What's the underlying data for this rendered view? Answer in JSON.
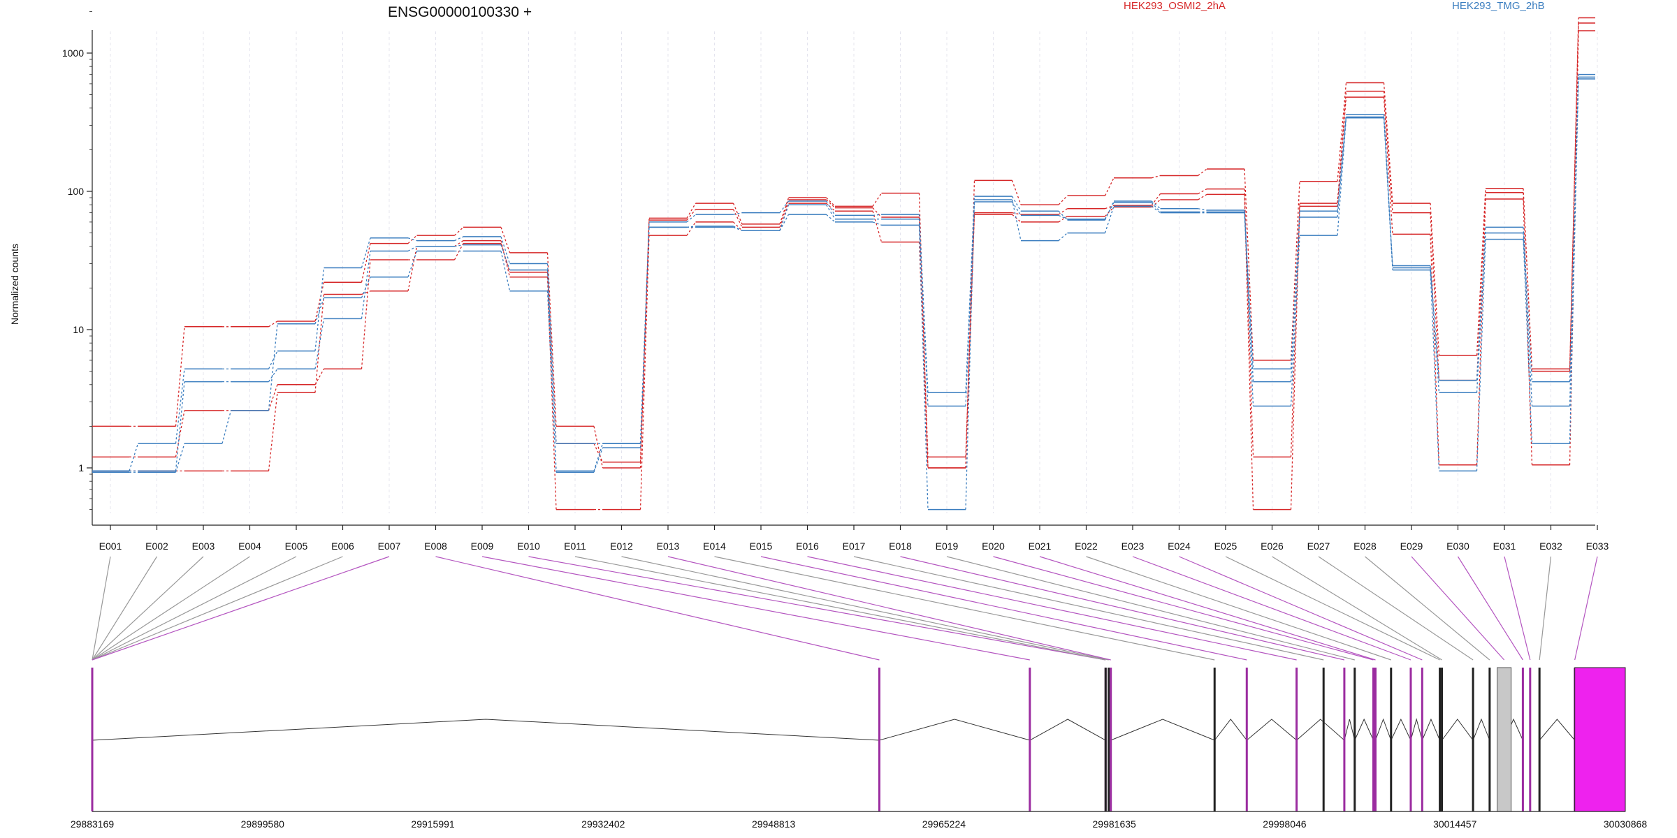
{
  "chart_data": {
    "type": "line",
    "title": "ENSG00000100330 +",
    "ylabel": "Normalized counts",
    "xlabel": "",
    "yscale": "log",
    "ylim": [
      0.5,
      2500
    ],
    "yticks": [
      "1",
      "10",
      "100",
      "1000"
    ],
    "categories": [
      "E001",
      "E002",
      "E003",
      "E004",
      "E005",
      "E006",
      "E007",
      "E008",
      "E009",
      "E010",
      "E011",
      "E012",
      "E013",
      "E014",
      "E015",
      "E016",
      "E017",
      "E018",
      "E019",
      "E020",
      "E021",
      "E022",
      "E023",
      "E024",
      "E025",
      "E026",
      "E027",
      "E028",
      "E029",
      "E030",
      "E031",
      "E032",
      "E033"
    ],
    "grid": true,
    "legend_position": "top",
    "groups": [
      {
        "name": "HEK293_OSMI2_2hA",
        "color": "#d62728"
      },
      {
        "name": "HEK293_TMG_2hB",
        "color": "#3a7dbf"
      }
    ],
    "series": [
      {
        "group": "HEK293_OSMI2_2hA",
        "values": [
          2.0,
          2.0,
          10.5,
          10.5,
          11.5,
          22,
          42,
          48,
          55,
          36,
          2.0,
          1.0,
          64,
          82,
          58,
          90,
          78,
          97,
          1.0,
          120,
          80,
          93,
          125,
          130,
          145,
          6.0,
          118,
          610,
          82,
          6.5,
          105,
          5.0,
          1800
        ]
      },
      {
        "group": "HEK293_OSMI2_2hA",
        "values": [
          1.2,
          1.2,
          2.6,
          2.6,
          4.0,
          5.2,
          32,
          32,
          42,
          26,
          1.5,
          1.1,
          62,
          74,
          55,
          87,
          76,
          65,
          1.2,
          70,
          68,
          75,
          79,
          96,
          104,
          1.2,
          82,
          530,
          70,
          4.3,
          98,
          5.2,
          1650
        ]
      },
      {
        "group": "HEK293_OSMI2_2hA",
        "values": [
          0.95,
          0.95,
          0.95,
          0.95,
          3.5,
          18,
          19,
          40,
          44,
          24,
          0.5,
          0.5,
          48,
          60,
          52,
          82,
          72,
          43,
          1.0,
          68,
          60,
          66,
          77,
          87,
          95,
          0.5,
          78,
          480,
          49,
          1.05,
          88,
          1.05,
          1450
        ]
      },
      {
        "group": "HEK293_TMG_2hB",
        "values": [
          0.95,
          1.5,
          5.2,
          5.2,
          7.0,
          28,
          46,
          44,
          47,
          30,
          1.5,
          1.5,
          60,
          68,
          70,
          85,
          67,
          68,
          3.5,
          92,
          72,
          62,
          85,
          75,
          73,
          5.2,
          72,
          360,
          29,
          4.3,
          55,
          4.2,
          700
        ]
      },
      {
        "group": "HEK293_TMG_2hB",
        "values": [
          0.95,
          0.95,
          4.2,
          4.2,
          5.2,
          12,
          37,
          40,
          41,
          27,
          0.95,
          1.5,
          55,
          56,
          52,
          80,
          63,
          63,
          2.8,
          84,
          67,
          63,
          83,
          71,
          71,
          4.2,
          65,
          345,
          28,
          3.5,
          50,
          2.8,
          670
        ]
      },
      {
        "group": "HEK293_TMG_2hB",
        "values": [
          0.93,
          0.93,
          1.5,
          2.6,
          11,
          17,
          24,
          37,
          37,
          19,
          0.93,
          1.4,
          55,
          55,
          52,
          68,
          60,
          57,
          0.5,
          87,
          44,
          50,
          78,
          70,
          70,
          2.8,
          48,
          340,
          27,
          0.95,
          45,
          1.5,
          650
        ]
      }
    ],
    "genomic_axis": {
      "tick_labels": [
        "29883169",
        "29899580",
        "29915991",
        "29932402",
        "29948813",
        "29965224",
        "29981635",
        "29998046",
        "30014457",
        "30030868"
      ],
      "range": [
        29883169,
        30030868
      ]
    }
  }
}
